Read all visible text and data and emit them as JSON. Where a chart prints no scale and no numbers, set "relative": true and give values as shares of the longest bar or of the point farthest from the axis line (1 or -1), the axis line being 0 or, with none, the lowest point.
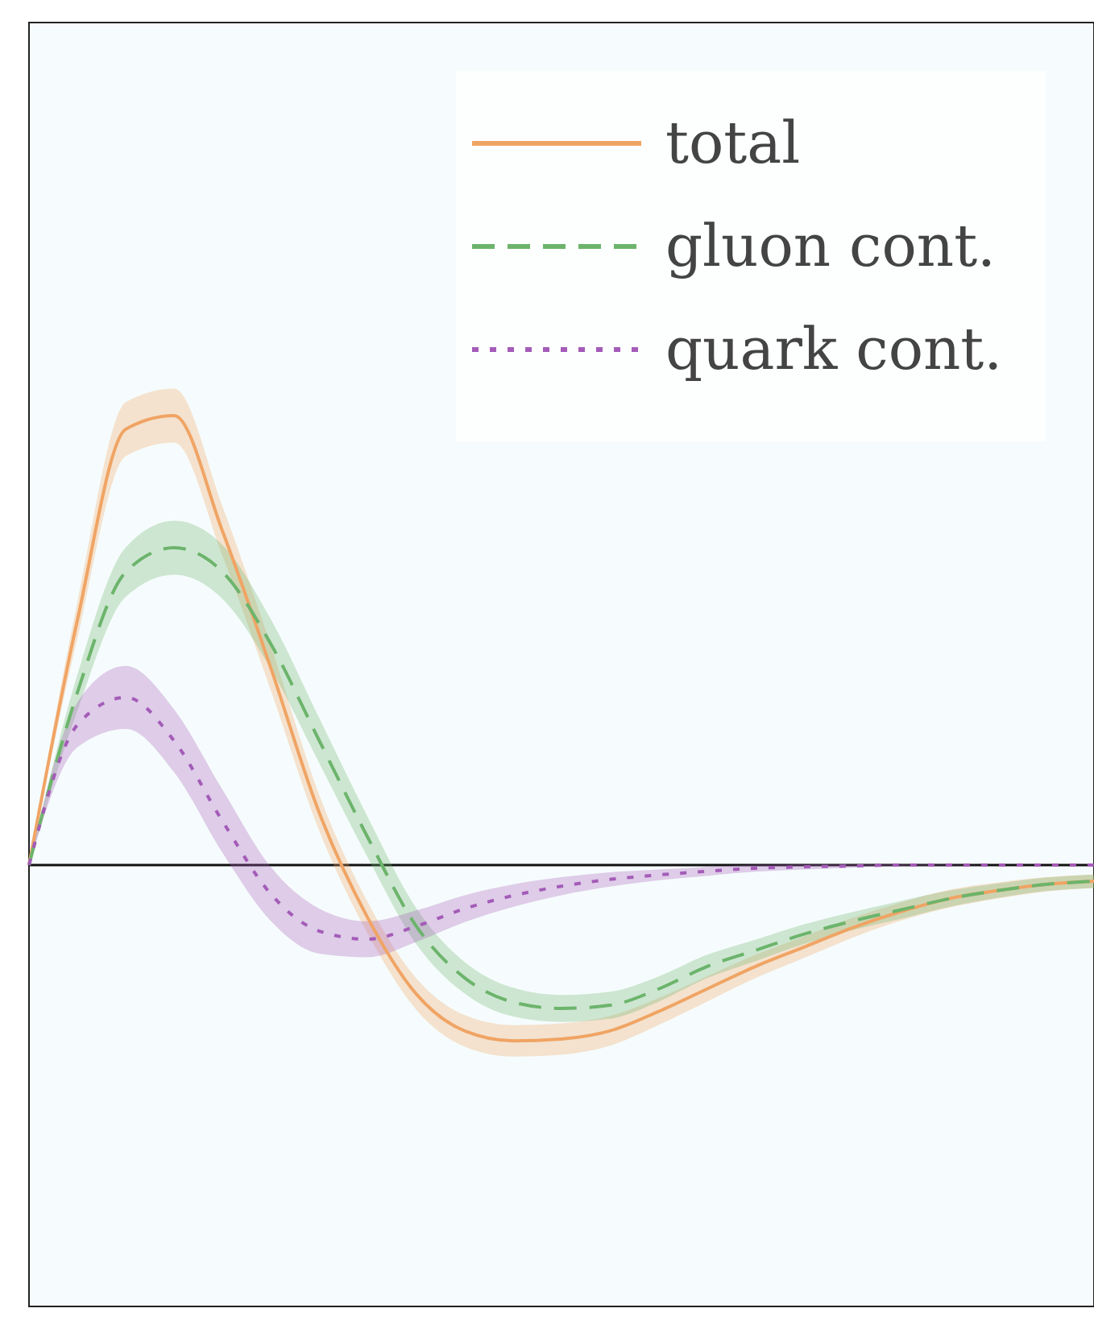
{
  "chart_data": {
    "type": "line",
    "relative": true,
    "legend": "top right",
    "categories": [
      null,
      null,
      null,
      null,
      null,
      null,
      null,
      null,
      null,
      null,
      null,
      null,
      null,
      null,
      null,
      null,
      null,
      null,
      null,
      null,
      null,
      null,
      null
    ],
    "series": [
      {
        "name": "total",
        "color": "#f0a464",
        "line_style": "solid",
        "values": [
          0,
          0.545,
          0.97,
          1,
          0.742,
          0.437,
          0.115,
          -0.118,
          -0.287,
          -0.369,
          -0.391,
          -0.387,
          -0.369,
          -0.326,
          -0.276,
          -0.226,
          -0.183,
          -0.14,
          -0.104,
          -0.075,
          -0.057,
          -0.043,
          -0.036
        ],
        "lower": [
          0,
          0.505,
          0.91,
          0.94,
          0.687,
          0.387,
          0.075,
          -0.153,
          -0.322,
          -0.404,
          -0.426,
          -0.422,
          -0.402,
          -0.356,
          -0.304,
          -0.252,
          -0.207,
          -0.162,
          -0.124,
          -0.095,
          -0.075,
          -0.059,
          -0.051
        ],
        "upper": [
          0,
          0.585,
          1.03,
          1.06,
          0.797,
          0.487,
          0.155,
          -0.083,
          -0.252,
          -0.334,
          -0.356,
          -0.352,
          -0.336,
          -0.296,
          -0.248,
          -0.2,
          -0.159,
          -0.118,
          -0.084,
          -0.055,
          -0.039,
          -0.027,
          -0.021
        ]
      },
      {
        "name": "gluon cont.",
        "color": "#6cb46c",
        "line_style": "dashed",
        "values": [
          0,
          0.384,
          0.652,
          0.706,
          0.652,
          0.491,
          0.276,
          0.061,
          -0.136,
          -0.251,
          -0.305,
          -0.319,
          -0.312,
          -0.276,
          -0.226,
          -0.19,
          -0.154,
          -0.125,
          -0.1,
          -0.075,
          -0.057,
          -0.043,
          -0.036
        ],
        "lower": [
          0,
          0.344,
          0.597,
          0.646,
          0.592,
          0.436,
          0.226,
          0.016,
          -0.176,
          -0.286,
          -0.337,
          -0.349,
          -0.342,
          -0.304,
          -0.252,
          -0.214,
          -0.176,
          -0.145,
          -0.12,
          -0.093,
          -0.073,
          -0.058,
          -0.051
        ],
        "upper": [
          0,
          0.424,
          0.707,
          0.766,
          0.712,
          0.546,
          0.326,
          0.106,
          -0.096,
          -0.216,
          -0.273,
          -0.289,
          -0.282,
          -0.248,
          -0.2,
          -0.166,
          -0.132,
          -0.105,
          -0.08,
          -0.057,
          -0.041,
          -0.028,
          -0.021
        ]
      },
      {
        "name": "quark cont.",
        "color": "#a45cb8",
        "line_style": "dotted",
        "values": [
          0,
          0.312,
          0.373,
          0.276,
          0.097,
          -0.065,
          -0.147,
          -0.165,
          -0.136,
          -0.097,
          -0.068,
          -0.047,
          -0.032,
          -0.022,
          -0.014,
          -0.007,
          -0.004,
          -0.002,
          0,
          0,
          0,
          0,
          0
        ],
        "lower": [
          0,
          0.262,
          0.303,
          0.206,
          0.027,
          -0.125,
          -0.197,
          -0.205,
          -0.171,
          -0.127,
          -0.093,
          -0.067,
          -0.048,
          -0.034,
          -0.024,
          -0.015,
          -0.01,
          -0.006,
          -0.002,
          -0.001,
          0,
          0,
          0
        ],
        "upper": [
          0,
          0.362,
          0.443,
          0.346,
          0.167,
          -0.005,
          -0.097,
          -0.125,
          -0.101,
          -0.067,
          -0.043,
          -0.027,
          -0.016,
          -0.01,
          -0.004,
          0.001,
          0.002,
          0.002,
          0.002,
          0.001,
          0,
          0,
          0
        ]
      }
    ]
  }
}
